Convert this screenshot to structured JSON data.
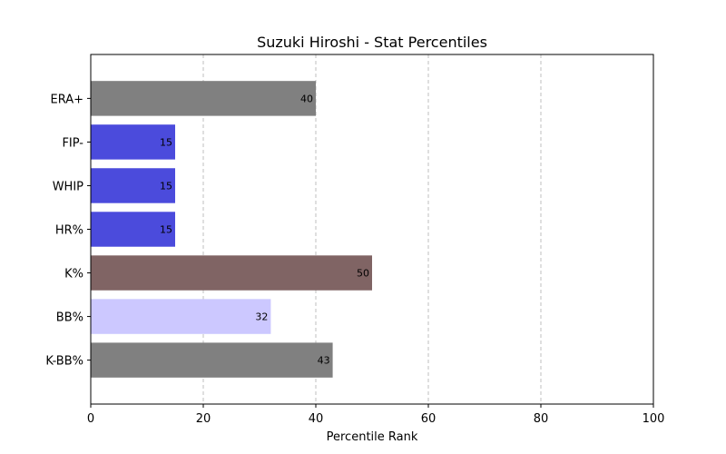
{
  "chart_data": {
    "type": "bar",
    "orientation": "horizontal",
    "title": "Suzuki Hiroshi - Stat Percentiles",
    "xlabel": "Percentile Rank",
    "ylabel": "",
    "xlim": [
      0,
      100
    ],
    "xticks": [
      "0",
      "20",
      "40",
      "60",
      "80",
      "100"
    ],
    "grid": "x-dashed",
    "categories": [
      "ERA+",
      "FIP-",
      "WHIP",
      "HR%",
      "K%",
      "BB%",
      "K-BB%"
    ],
    "values": [
      40,
      15,
      15,
      15,
      50,
      32,
      43
    ],
    "value_labels": [
      "40",
      "15",
      "15",
      "15",
      "50",
      "32",
      "43"
    ],
    "colors": [
      "#808080",
      "#4b4bdc",
      "#4b4bdc",
      "#4b4bdc",
      "#806464",
      "#ccc8ff",
      "#808080"
    ]
  }
}
